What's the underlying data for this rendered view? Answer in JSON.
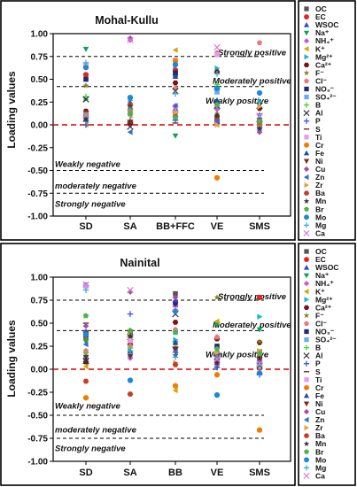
{
  "species": [
    {
      "label": "OC",
      "color": "#555555",
      "shape": "square"
    },
    {
      "label": "EC",
      "color": "#e8231f",
      "shape": "circle"
    },
    {
      "label": "WSOC",
      "color": "#2747d8",
      "shape": "triangle-up"
    },
    {
      "label": "Na⁺",
      "color": "#0aa35a",
      "shape": "triangle-down"
    },
    {
      "label": "NH₄⁺",
      "color": "#cc55dd",
      "shape": "diamond"
    },
    {
      "label": "K⁺",
      "color": "#d9a400",
      "shape": "triangle-left"
    },
    {
      "label": "Mg²⁺",
      "color": "#17b6cc",
      "shape": "triangle-right"
    },
    {
      "label": "Ca²⁺",
      "color": "#7a1515",
      "shape": "hexagon"
    },
    {
      "label": "F⁻",
      "color": "#7e7e1c",
      "shape": "star"
    },
    {
      "label": "Cl⁻",
      "color": "#ee7777",
      "shape": "pentagon"
    },
    {
      "label": "NO₃⁻",
      "color": "#1f2b6e",
      "shape": "square"
    },
    {
      "label": "SO₄²⁻",
      "color": "#66aaff",
      "shape": "square"
    },
    {
      "label": "B",
      "color": "#55cc33",
      "shape": "plus"
    },
    {
      "label": "Al",
      "color": "#333333",
      "shape": "x"
    },
    {
      "label": "P",
      "color": "#3355ee",
      "shape": "plus"
    },
    {
      "label": "S",
      "color": "#6b2a1f",
      "shape": "dash"
    },
    {
      "label": "Ti",
      "color": "#e79be8",
      "shape": "square"
    },
    {
      "label": "Cr",
      "color": "#f07d00",
      "shape": "circle"
    },
    {
      "label": "Fe",
      "color": "#1a4fa1",
      "shape": "triangle-up"
    },
    {
      "label": "Ni",
      "color": "#7a2a1a",
      "shape": "triangle-down"
    },
    {
      "label": "Cu",
      "color": "#a64ca6",
      "shape": "diamond"
    },
    {
      "label": "Zn",
      "color": "#2c6fd2",
      "shape": "triangle-left"
    },
    {
      "label": "Zr",
      "color": "#e8a33a",
      "shape": "triangle-right"
    },
    {
      "label": "Ba",
      "color": "#c63b2b",
      "shape": "hexagon"
    },
    {
      "label": "Mn",
      "color": "#333333",
      "shape": "star"
    },
    {
      "label": "Br",
      "color": "#4cb34c",
      "shape": "pentagon"
    },
    {
      "label": "Mo",
      "color": "#1a88dd",
      "shape": "circle"
    },
    {
      "label": "Mg",
      "color": "#3bb0d8",
      "shape": "plus"
    },
    {
      "label": "Ca",
      "color": "#d97ad9",
      "shape": "x"
    }
  ],
  "chart_data": [
    {
      "type": "scatter",
      "title": "Mohal-Kullu",
      "ylabel": "Loading values",
      "categories": [
        "SD",
        "SA",
        "BB+FFC",
        "VE",
        "SMS"
      ],
      "ylim": [
        -1.0,
        1.0
      ],
      "yticks": [
        "-1.00",
        "-0.75",
        "-0.50",
        "-0.25",
        "0.00",
        "0.25",
        "0.50",
        "0.75",
        "1.00"
      ],
      "reference_lines": [
        {
          "y": 0.75,
          "color": "#000000",
          "style": "dashed",
          "label": "Strongly positive"
        },
        {
          "y": 0.42,
          "color": "#000000",
          "style": "dashed",
          "label": "Moderately positive"
        },
        {
          "y": 0.0,
          "color": "#e00000",
          "style": "dashed",
          "label": ""
        },
        {
          "y": -0.5,
          "color": "#000000",
          "style": "dashed",
          "label": ""
        },
        {
          "y": -0.75,
          "color": "#000000",
          "style": "dashed",
          "label": ""
        }
      ],
      "region_labels": [
        {
          "text": "Strongly positive",
          "y": 0.79
        },
        {
          "text": "Moderately positive",
          "y": 0.48
        },
        {
          "text": "Weakly positive",
          "y": 0.26
        },
        {
          "text": "Weakly negative",
          "y": -0.43
        },
        {
          "text": "moderately negative",
          "y": -0.67
        },
        {
          "text": "Strongly negative",
          "y": -0.87
        }
      ],
      "series": [
        {
          "name": "OC",
          "values": [
            0.12,
            0.16,
            0.55,
            0.06,
            0.05
          ]
        },
        {
          "name": "EC",
          "values": [
            0.55,
            0.01,
            0.6,
            0.24,
            -0.03
          ]
        },
        {
          "name": "WSOC",
          "values": [
            0.13,
            0.19,
            0.18,
            0.12,
            0.06
          ]
        },
        {
          "name": "Na⁺",
          "values": [
            0.83,
            0.27,
            -0.12,
            0.19,
            -0.03
          ]
        },
        {
          "name": "NH₄⁺",
          "values": [
            0.07,
            0.93,
            0.21,
            0.17,
            -0.05
          ]
        },
        {
          "name": "K⁺",
          "values": [
            0.0,
            0.1,
            0.82,
            0.0,
            0.0
          ]
        },
        {
          "name": "Mg²⁺",
          "values": [
            0.28,
            0.27,
            0.65,
            0.62,
            0.25
          ]
        },
        {
          "name": "Ca²⁺",
          "values": [
            0.15,
            0.02,
            0.46,
            0.58,
            0.18
          ]
        },
        {
          "name": "F⁻",
          "values": [
            0.43,
            0.04,
            0.1,
            0.12,
            0.02
          ]
        },
        {
          "name": "Cl⁻",
          "values": [
            0.66,
            0.23,
            0.4,
            0.79,
            0.9
          ]
        },
        {
          "name": "NO₃⁻",
          "values": [
            0.5,
            0.13,
            0.57,
            0.03,
            0.0
          ]
        },
        {
          "name": "SO₄²⁻",
          "values": [
            0.1,
            0.14,
            0.07,
            0.36,
            -0.04
          ]
        },
        {
          "name": "B",
          "values": [
            0.31,
            0.12,
            0.15,
            0.44,
            0.03
          ]
        },
        {
          "name": "Al",
          "values": [
            0.28,
            -0.02,
            0.37,
            0.21,
            0.21
          ]
        },
        {
          "name": "P",
          "values": [
            0.0,
            0.05,
            0.05,
            0.02,
            0.0
          ]
        },
        {
          "name": "S",
          "values": [
            0.04,
            0.03,
            0.02,
            0.39,
            0.04
          ]
        },
        {
          "name": "Ti",
          "values": [
            0.66,
            0.12,
            0.71,
            0.77,
            0.03
          ]
        },
        {
          "name": "Cr",
          "values": [
            0.09,
            0.16,
            0.7,
            -0.58,
            0.01
          ]
        },
        {
          "name": "Fe",
          "values": [
            0.12,
            0.24,
            0.53,
            0.27,
            0.06
          ]
        },
        {
          "name": "Ni",
          "values": [
            0.07,
            0.03,
            0.11,
            0.03,
            0.1
          ]
        },
        {
          "name": "Cu",
          "values": [
            0.09,
            0.95,
            0.2,
            0.04,
            -0.08
          ]
        },
        {
          "name": "Zn",
          "values": [
            0.05,
            -0.08,
            0.21,
            0.05,
            0.05
          ]
        },
        {
          "name": "Zr",
          "values": [
            0.12,
            0.19,
            0.13,
            0.0,
            0.2
          ]
        },
        {
          "name": "Ba",
          "values": [
            0.12,
            0.22,
            0.09,
            0.09,
            0.03
          ]
        },
        {
          "name": "Mn",
          "values": [
            0.06,
            0.2,
            0.08,
            0.1,
            -0.04
          ]
        },
        {
          "name": "Br",
          "values": [
            0.11,
            0.12,
            0.08,
            0.22,
            0.04
          ]
        },
        {
          "name": "Mo",
          "values": [
            0.63,
            0.3,
            0.66,
            0.4,
            0.35
          ]
        },
        {
          "name": "Mg",
          "values": [
            0.68,
            0.17,
            0.34,
            0.56,
            0.11
          ]
        },
        {
          "name": "Ca",
          "values": [
            0.11,
            0.93,
            0.17,
            0.85,
            0.1
          ]
        }
      ]
    },
    {
      "type": "scatter",
      "title": "Nainital",
      "ylabel": "Loading values",
      "categories": [
        "SD",
        "SA",
        "BB",
        "VE",
        "SMS"
      ],
      "ylim": [
        -1.0,
        1.0
      ],
      "yticks": [
        "-1.00",
        "-0.75",
        "-0.50",
        "-0.25",
        "0.00",
        "0.25",
        "0.50",
        "0.75",
        "1.00"
      ],
      "reference_lines": [
        {
          "y": 0.75,
          "color": "#000000",
          "style": "dashed",
          "label": "Strongly positive"
        },
        {
          "y": 0.42,
          "color": "#000000",
          "style": "dashed",
          "label": "Moderately positive"
        },
        {
          "y": 0.0,
          "color": "#e00000",
          "style": "dashed",
          "label": ""
        },
        {
          "y": -0.5,
          "color": "#000000",
          "style": "dashed",
          "label": ""
        },
        {
          "y": -0.75,
          "color": "#000000",
          "style": "dashed",
          "label": ""
        }
      ],
      "region_labels": [
        {
          "text": "Strongly positive",
          "y": 0.79
        },
        {
          "text": "Moderately positive",
          "y": 0.48
        },
        {
          "text": "Weakly positive",
          "y": 0.16
        },
        {
          "text": "Weakly negative",
          "y": -0.4
        },
        {
          "text": "moderately negative",
          "y": -0.66
        },
        {
          "text": "Strongly negative",
          "y": -0.86
        }
      ],
      "series": [
        {
          "name": "OC",
          "values": [
            0.34,
            0.38,
            0.82,
            0.17,
            0.19
          ]
        },
        {
          "name": "EC",
          "values": [
            0.4,
            0.27,
            0.73,
            0.05,
            0.78
          ]
        },
        {
          "name": "WSOC",
          "values": [
            0.4,
            0.32,
            0.75,
            0.25,
            0.15
          ]
        },
        {
          "name": "Na⁺",
          "values": [
            0.3,
            0.35,
            0.28,
            0.48,
            0.43
          ]
        },
        {
          "name": "NH₄⁺",
          "values": [
            0.18,
            0.12,
            0.3,
            0.07,
            0.09
          ]
        },
        {
          "name": "K⁺",
          "values": [
            0.03,
            0.4,
            -0.23,
            0.52,
            0.12
          ]
        },
        {
          "name": "Mg²⁺",
          "values": [
            0.92,
            0.2,
            0.32,
            0.02,
            0.57
          ]
        },
        {
          "name": "Ca²⁺",
          "values": [
            0.08,
            0.26,
            0.51,
            0.33,
            0.29
          ]
        },
        {
          "name": "F⁻",
          "values": [
            0.33,
            0.36,
            0.28,
            0.78,
            0.3
          ]
        },
        {
          "name": "Cl⁻",
          "values": [
            0.2,
            0.25,
            0.43,
            0.35,
            0.13
          ]
        },
        {
          "name": "NO₃⁻",
          "values": [
            0.38,
            0.4,
            0.7,
            0.25,
            0.11
          ]
        },
        {
          "name": "SO₄²⁻",
          "values": [
            0.12,
            0.15,
            0.4,
            0.1,
            0.08
          ]
        },
        {
          "name": "B",
          "values": [
            0.18,
            0.23,
            0.24,
            0.05,
            0.03
          ]
        },
        {
          "name": "Al",
          "values": [
            0.09,
            0.35,
            0.6,
            0.14,
            0.04
          ]
        },
        {
          "name": "P",
          "values": [
            0.91,
            0.6,
            0.18,
            0.02,
            -0.06
          ]
        },
        {
          "name": "S",
          "values": [
            0.5,
            0.35,
            0.24,
            0.11,
            -0.05
          ]
        },
        {
          "name": "Ti",
          "values": [
            0.9,
            0.31,
            0.2,
            0.06,
            0.07
          ]
        },
        {
          "name": "Cr",
          "values": [
            -0.31,
            0.4,
            -0.18,
            -0.06,
            -0.66
          ]
        },
        {
          "name": "Fe",
          "values": [
            0.41,
            0.2,
            0.29,
            0.11,
            0.07
          ]
        },
        {
          "name": "Ni",
          "values": [
            0.13,
            0.14,
            0.21,
            0.05,
            0.1
          ]
        },
        {
          "name": "Cu",
          "values": [
            0.47,
            0.84,
            0.78,
            0.06,
            0.09
          ]
        },
        {
          "name": "Zn",
          "values": [
            0.27,
            0.38,
            0.19,
            0.14,
            0.12
          ]
        },
        {
          "name": "Zr",
          "values": [
            0.58,
            0.37,
            0.07,
            0.18,
            0.2
          ]
        },
        {
          "name": "Ba",
          "values": [
            -0.13,
            -0.27,
            0.05,
            0.12,
            0.13
          ]
        },
        {
          "name": "Mn",
          "values": [
            0.1,
            0.36,
            0.15,
            0.07,
            0.12
          ]
        },
        {
          "name": "Br",
          "values": [
            0.58,
            0.42,
            0.4,
            0.22,
            0.17
          ]
        },
        {
          "name": "Mo",
          "values": [
            0.38,
            -0.12,
            0.63,
            -0.28,
            -0.04
          ]
        },
        {
          "name": "Mg",
          "values": [
            0.86,
            0.2,
            0.13,
            0.12,
            0.05
          ]
        },
        {
          "name": "Ca",
          "values": [
            0.92,
            0.86,
            0.67,
            0.11,
            0.06
          ]
        }
      ]
    }
  ]
}
